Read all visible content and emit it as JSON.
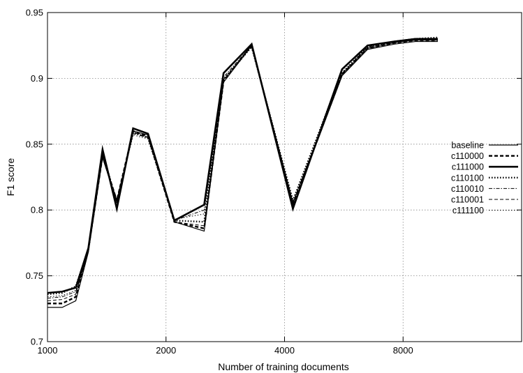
{
  "chart_data": {
    "type": "line",
    "xlabel": "Number of training documents",
    "ylabel": "F1 score",
    "x_ticks": [
      {
        "value": 1000,
        "label": "1000"
      },
      {
        "value": 2000,
        "label": "2000"
      },
      {
        "value": 4000,
        "label": "4000"
      },
      {
        "value": 8000,
        "label": "8000"
      }
    ],
    "y_ticks": [
      {
        "value": 0.7,
        "label": "0.7"
      },
      {
        "value": 0.75,
        "label": "0.75"
      },
      {
        "value": 0.8,
        "label": "0.8"
      },
      {
        "value": 0.85,
        "label": "0.85"
      },
      {
        "value": 0.9,
        "label": "0.9"
      },
      {
        "value": 0.95,
        "label": "0.95"
      }
    ],
    "xlim": [
      1000,
      16000
    ],
    "ylim": [
      0.7,
      0.95
    ],
    "x_scale": "log",
    "grid": true,
    "legend_position": "right",
    "x": [
      1000,
      1090,
      1180,
      1270,
      1380,
      1500,
      1650,
      1800,
      2100,
      2500,
      2800,
      3300,
      4200,
      5600,
      6500,
      7600,
      8600,
      9800
    ],
    "series": [
      {
        "name": "baseline",
        "style": "solid-thin",
        "values": [
          0.726,
          0.726,
          0.731,
          0.768,
          0.84,
          0.806,
          0.86,
          0.857,
          0.791,
          0.784,
          0.897,
          0.925,
          0.803,
          0.902,
          0.922,
          0.926,
          0.928,
          0.928
        ]
      },
      {
        "name": "c110000",
        "style": "dashed-thick",
        "values": [
          0.729,
          0.729,
          0.734,
          0.77,
          0.841,
          0.807,
          0.86,
          0.856,
          0.791,
          0.786,
          0.898,
          0.925,
          0.804,
          0.903,
          0.923,
          0.927,
          0.929,
          0.929
        ]
      },
      {
        "name": "c111000",
        "style": "solid-thick",
        "values": [
          0.737,
          0.738,
          0.741,
          0.771,
          0.846,
          0.801,
          0.862,
          0.858,
          0.792,
          0.804,
          0.904,
          0.926,
          0.801,
          0.907,
          0.925,
          0.928,
          0.93,
          0.93
        ]
      },
      {
        "name": "c110100",
        "style": "dotted-thick",
        "values": [
          0.736,
          0.737,
          0.742,
          0.77,
          0.843,
          0.806,
          0.859,
          0.855,
          0.792,
          0.791,
          0.899,
          0.924,
          0.807,
          0.904,
          0.924,
          0.928,
          0.93,
          0.931
        ]
      },
      {
        "name": "c110010",
        "style": "dashdot-thin",
        "values": [
          0.733,
          0.734,
          0.738,
          0.769,
          0.84,
          0.808,
          0.858,
          0.855,
          0.792,
          0.8,
          0.901,
          0.925,
          0.805,
          0.904,
          0.924,
          0.928,
          0.929,
          0.929
        ]
      },
      {
        "name": "c110001",
        "style": "dashed-thin",
        "values": [
          0.731,
          0.732,
          0.736,
          0.769,
          0.841,
          0.807,
          0.859,
          0.855,
          0.791,
          0.788,
          0.899,
          0.925,
          0.806,
          0.903,
          0.923,
          0.927,
          0.929,
          0.929
        ]
      },
      {
        "name": "c111100",
        "style": "dotted-thin",
        "values": [
          0.734,
          0.735,
          0.739,
          0.768,
          0.84,
          0.805,
          0.857,
          0.854,
          0.793,
          0.797,
          0.9,
          0.924,
          0.808,
          0.906,
          0.925,
          0.928,
          0.929,
          0.93
        ]
      }
    ]
  }
}
